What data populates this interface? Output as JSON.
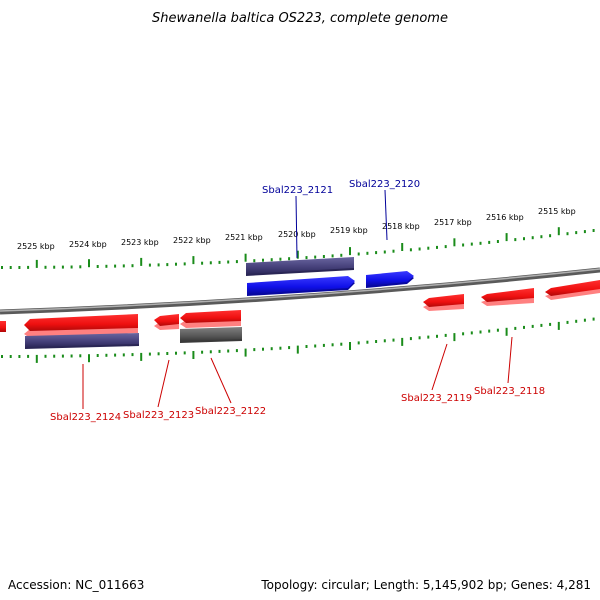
{
  "title": "Shewanella baltica OS223, complete genome",
  "footer": {
    "accession": "Accession: NC_011663",
    "summary": "Topology: circular; Length: 5,145,902 bp; Genes: 4,281"
  },
  "colors": {
    "forward_gene": "#1010e8",
    "reverse_gene": "#ee1010",
    "forward_label": "#000099",
    "reverse_label": "#cc0000",
    "cds_track": "#45407a",
    "grey_feature": "#606060",
    "backbone": "#8a8a8a",
    "ticks": "#1a8c1a"
  },
  "scale": {
    "unit": "kbp",
    "tick_labels": [
      "2525 kbp",
      "2524 kbp",
      "2523 kbp",
      "2522 kbp",
      "2521 kbp",
      "2520 kbp",
      "2519 kbp",
      "2518 kbp",
      "2517 kbp",
      "2516 kbp",
      "2515 kbp"
    ]
  },
  "genes": {
    "forward": [
      "Sbal223_2121",
      "Sbal223_2120"
    ],
    "reverse": [
      "Sbal223_2124",
      "Sbal223_2123",
      "Sbal223_2122",
      "Sbal223_2119",
      "Sbal223_2118"
    ]
  }
}
